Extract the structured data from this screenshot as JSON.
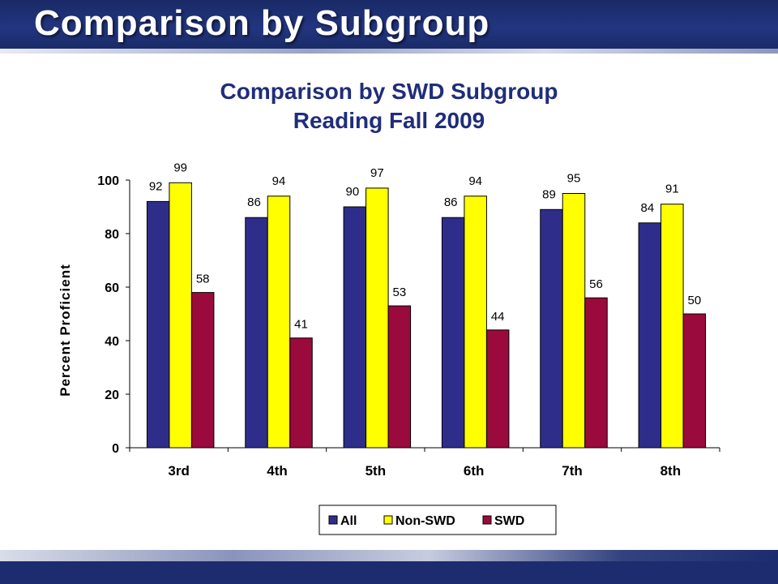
{
  "slide": {
    "title": "Comparison by Subgroup"
  },
  "colors": {
    "header": "#1f2d6e",
    "All": "#2e2e8a",
    "Non-SWD": "#ffff00",
    "SWD": "#9b0a3c",
    "title": "#1f2d7a"
  },
  "chart_data": {
    "type": "bar",
    "title": [
      "Comparison by SWD Subgroup",
      "Reading Fall 2009"
    ],
    "ylabel": "Percent Proficient",
    "xlabel": "",
    "ylim": [
      0,
      100
    ],
    "yticks": [
      0,
      20,
      40,
      60,
      80,
      100
    ],
    "categories": [
      "3rd",
      "4th",
      "5th",
      "6th",
      "7th",
      "8th"
    ],
    "series": [
      {
        "name": "All",
        "values": [
          92,
          86,
          90,
          86,
          89,
          84
        ]
      },
      {
        "name": "Non-SWD",
        "values": [
          99,
          94,
          97,
          94,
          95,
          91
        ]
      },
      {
        "name": "SWD",
        "values": [
          58,
          41,
          53,
          44,
          56,
          50
        ]
      }
    ],
    "legend_position": "bottom",
    "data_labels": true,
    "grid": false
  }
}
